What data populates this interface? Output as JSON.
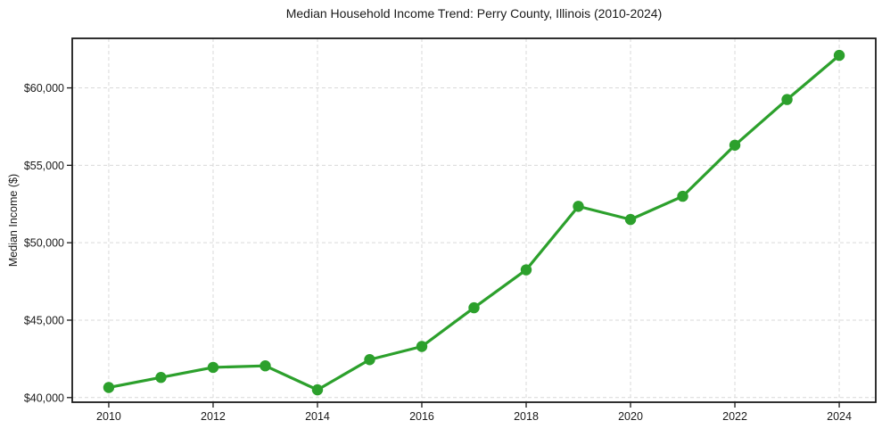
{
  "chart_data": {
    "type": "line",
    "title": "Median Household Income Trend: Perry County, Illinois (2010-2024)",
    "xlabel": "",
    "ylabel": "Median Income ($)",
    "x": [
      2010,
      2011,
      2012,
      2013,
      2014,
      2015,
      2016,
      2017,
      2018,
      2019,
      2020,
      2021,
      2022,
      2023,
      2024
    ],
    "values": [
      40650,
      41300,
      41950,
      42050,
      40500,
      42450,
      43300,
      45800,
      48250,
      52350,
      51500,
      53000,
      56300,
      59250,
      62100
    ],
    "x_tick_positions": [
      2010,
      2012,
      2014,
      2016,
      2018,
      2020,
      2022,
      2024
    ],
    "x_tick_labels": [
      "2010",
      "2012",
      "2014",
      "2016",
      "2018",
      "2020",
      "2022",
      "2024"
    ],
    "y_tick_positions": [
      40000,
      45000,
      50000,
      55000,
      60000
    ],
    "y_tick_labels": [
      "$40,000",
      "$45,000",
      "$50,000",
      "$55,000",
      "$60,000"
    ],
    "xlim": [
      2009.3,
      2024.7
    ],
    "ylim": [
      39700,
      63200
    ],
    "grid": true,
    "grid_style": "dashed",
    "legend": "none",
    "line_color": "#2ca02c",
    "marker_color": "#2ca02c",
    "grid_color": "#d9d9d9",
    "axis_color": "#1a1a1a",
    "background": "#ffffff"
  }
}
